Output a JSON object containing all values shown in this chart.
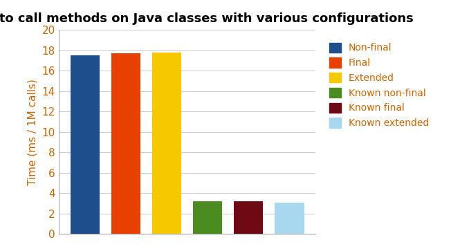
{
  "title": "Time to call methods on Java classes with various configurations",
  "ylabel": "Time (ms / 1M calls)",
  "categories": [
    "Non-final",
    "Final",
    "Extended",
    "Known non-final",
    "Known final",
    "Known extended"
  ],
  "values": [
    17.5,
    17.7,
    17.75,
    3.2,
    3.2,
    3.1
  ],
  "colors": [
    "#1e4e8c",
    "#e84000",
    "#f5c800",
    "#4a8c20",
    "#6e0a14",
    "#a8d8f0"
  ],
  "ylim": [
    0,
    20
  ],
  "yticks": [
    0,
    2,
    4,
    6,
    8,
    10,
    12,
    14,
    16,
    18,
    20
  ],
  "background_color": "#ffffff",
  "grid_color": "#cccccc",
  "title_fontsize": 13,
  "axis_fontsize": 11,
  "tick_fontsize": 11,
  "legend_fontsize": 10,
  "title_color": "#000000",
  "label_color": "#cc6600",
  "tick_color": "#cc6600"
}
